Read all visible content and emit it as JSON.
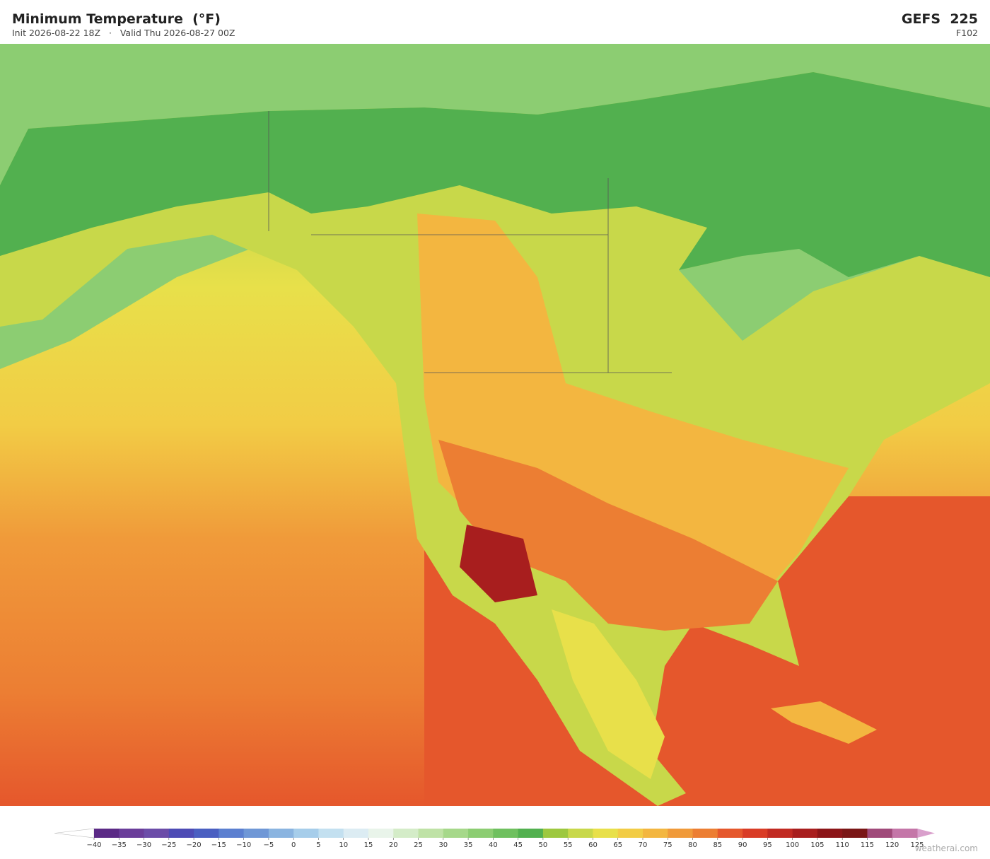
{
  "header": {
    "title": "Minimum Temperature  (°F)",
    "subtitle": "Init 2026-08-22 18Z   ·   Valid Thu 2026-08-27 00Z",
    "model": "GEFS  225",
    "forecast_hour": "F102"
  },
  "colorbar": {
    "ticks": [
      {
        "value": -40,
        "label": "−40"
      },
      {
        "value": -35,
        "label": "−35"
      },
      {
        "value": -30,
        "label": "−30"
      },
      {
        "value": -25,
        "label": "−25"
      },
      {
        "value": -20,
        "label": "−20"
      },
      {
        "value": -15,
        "label": "−15"
      },
      {
        "value": -10,
        "label": "−10"
      },
      {
        "value": -5,
        "label": "−5"
      },
      0,
      5,
      10,
      15,
      20,
      25,
      30,
      35,
      40,
      45,
      50,
      55,
      60,
      65,
      70,
      75,
      80,
      85,
      90,
      95,
      100,
      105,
      110,
      115,
      120,
      125
    ],
    "colors": [
      "#5b2a86",
      "#6a3d9a",
      "#6b4ca8",
      "#4d4bb5",
      "#4a5fc1",
      "#5b7fd0",
      "#6f97d6",
      "#8ab4e0",
      "#a6cdea",
      "#c3e0f0",
      "#dcecf3",
      "#e9f4ea",
      "#d4ecc8",
      "#bfe2a6",
      "#a6d88a",
      "#8ccd72",
      "#6fc05f",
      "#52b04f",
      "#9dc83f",
      "#c8d84a",
      "#e8e04a",
      "#f2cc45",
      "#f3b640",
      "#f09a3a",
      "#ec7e33",
      "#e5572c",
      "#d93c26",
      "#c12a22",
      "#a81e1e",
      "#8c1518",
      "#7a1616",
      "#a04a7a",
      "#c476a8"
    ],
    "under_color": "#ffffff",
    "over_color": "#d9a0cc"
  },
  "footer": {
    "credit": "weatherai.com"
  }
}
